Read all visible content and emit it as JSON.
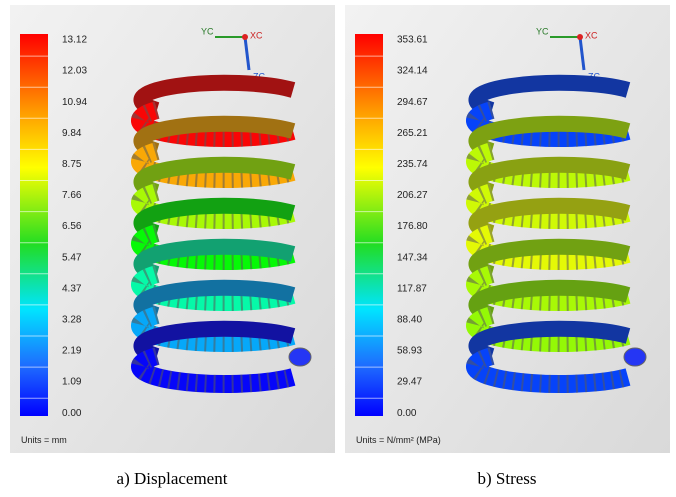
{
  "panels": [
    {
      "legend": [
        "13.12",
        "12.03",
        "10.94",
        "9.84",
        "8.75",
        "7.66",
        "6.56",
        "5.47",
        "4.37",
        "3.28",
        "2.19",
        "1.09",
        "0.00"
      ],
      "units": "Units = mm",
      "axes": {
        "yc": "YC",
        "xc": "XC",
        "zc": "ZC"
      },
      "caption": "a) Displacement"
    },
    {
      "legend": [
        "353.61",
        "324.14",
        "294.67",
        "265.21",
        "235.74",
        "206.27",
        "176.80",
        "147.34",
        "117.87",
        "88.40",
        "58.93",
        "29.47",
        "0.00"
      ],
      "units": "Units = N/mm² (MPa)",
      "axes": {
        "yc": "YC",
        "xc": "XC",
        "zc": "ZC"
      },
      "caption": "b) Stress"
    }
  ]
}
